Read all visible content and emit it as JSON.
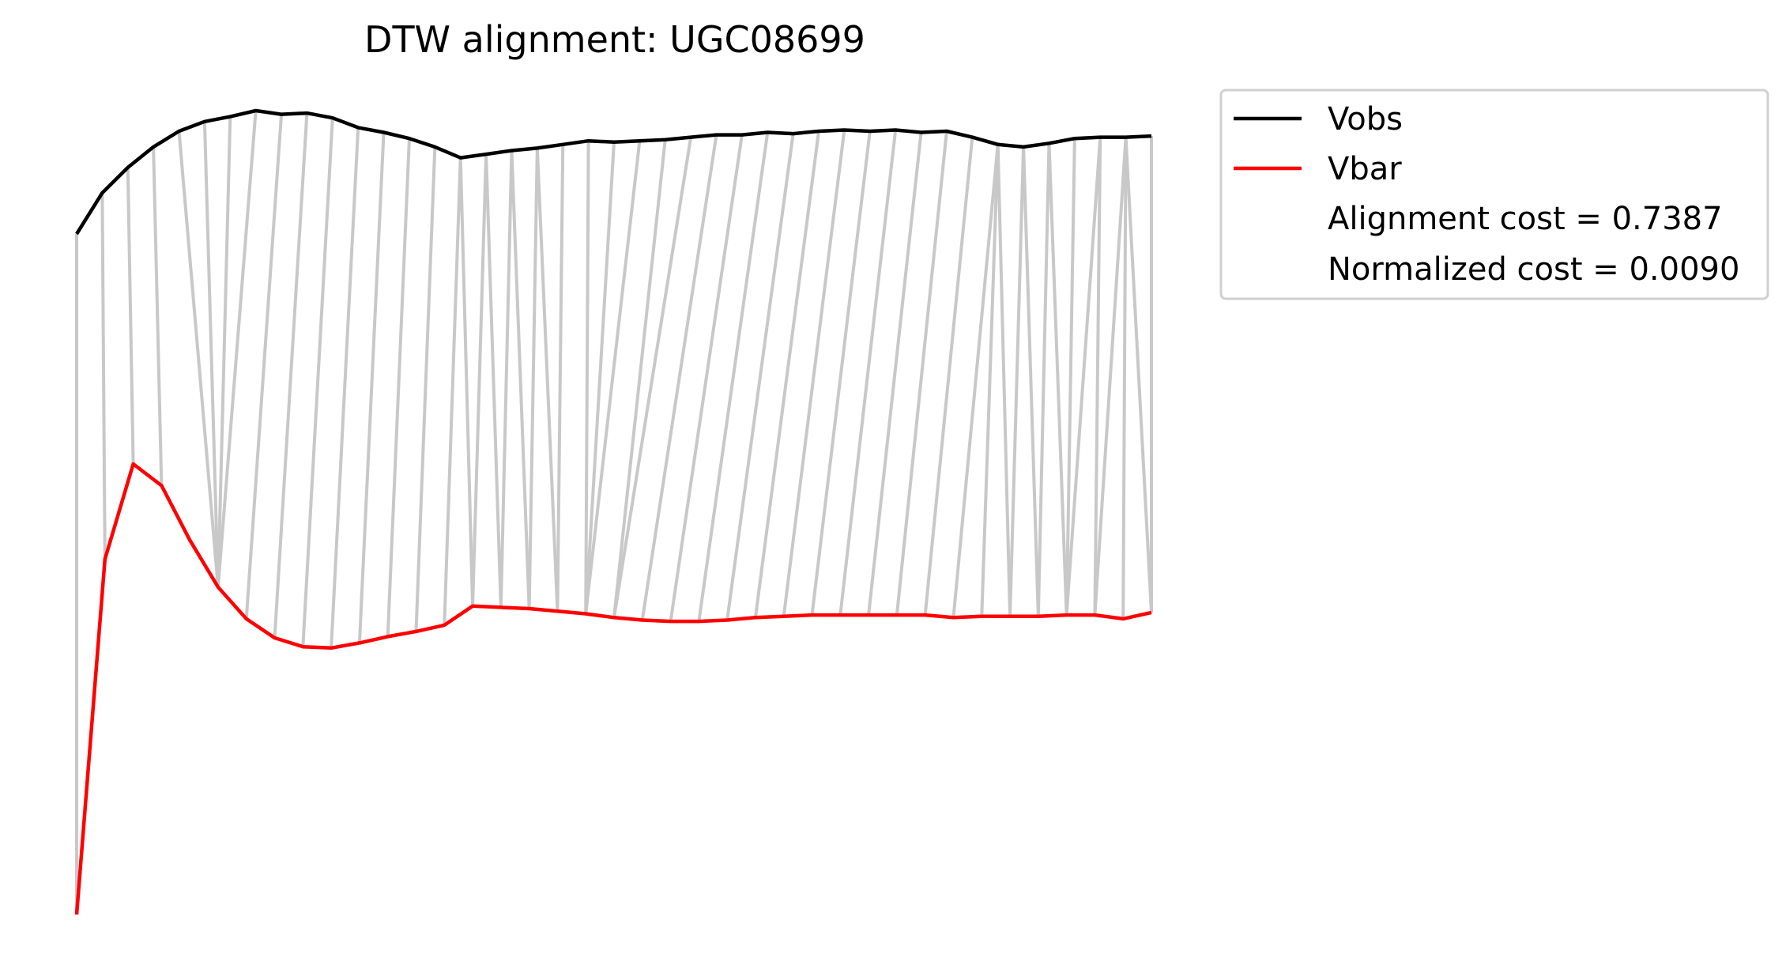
{
  "chart_data": {
    "type": "line",
    "title": "DTW alignment: UGC08699",
    "xlabel": "",
    "ylabel": "",
    "axes_visible": false,
    "grid": false,
    "legend_placement": "outside-upper-right",
    "series": [
      {
        "name": "Vobs",
        "color": "#000000",
        "values": [
          0.0,
          0.34,
          0.55,
          0.72,
          0.85,
          0.93,
          0.97,
          1.02,
          0.99,
          1.0,
          0.96,
          0.88,
          0.84,
          0.79,
          0.72,
          0.63,
          0.66,
          0.69,
          0.71,
          0.74,
          0.77,
          0.76,
          0.77,
          0.78,
          0.8,
          0.82,
          0.82,
          0.84,
          0.83,
          0.85,
          0.86,
          0.85,
          0.86,
          0.84,
          0.85,
          0.8,
          0.74,
          0.72,
          0.75,
          0.79,
          0.8,
          0.8,
          0.81
        ]
      },
      {
        "name": "Vbar",
        "color": "#ff0000",
        "values": [
          -5.3,
          -2.5,
          -1.75,
          -1.92,
          -2.35,
          -2.72,
          -2.97,
          -3.12,
          -3.19,
          -3.2,
          -3.16,
          -3.11,
          -3.07,
          -3.02,
          -2.87,
          -2.88,
          -2.89,
          -2.91,
          -2.93,
          -2.96,
          -2.98,
          -2.99,
          -2.99,
          -2.98,
          -2.96,
          -2.95,
          -2.94,
          -2.94,
          -2.94,
          -2.94,
          -2.94,
          -2.96,
          -2.95,
          -2.95,
          -2.95,
          -2.94,
          -2.94,
          -2.97,
          -2.92
        ]
      }
    ],
    "alignment_path": [
      [
        0,
        0
      ],
      [
        1,
        1
      ],
      [
        2,
        2
      ],
      [
        3,
        3
      ],
      [
        4,
        5
      ],
      [
        5,
        5
      ],
      [
        6,
        5
      ],
      [
        7,
        5
      ],
      [
        8,
        6
      ],
      [
        9,
        7
      ],
      [
        10,
        8
      ],
      [
        11,
        9
      ],
      [
        12,
        10
      ],
      [
        13,
        11
      ],
      [
        14,
        12
      ],
      [
        15,
        13
      ],
      [
        15,
        14
      ],
      [
        16,
        14
      ],
      [
        16,
        15
      ],
      [
        17,
        15
      ],
      [
        17,
        16
      ],
      [
        18,
        16
      ],
      [
        18,
        17
      ],
      [
        19,
        17
      ],
      [
        20,
        18
      ],
      [
        21,
        18
      ],
      [
        22,
        18
      ],
      [
        23,
        19
      ],
      [
        24,
        19
      ],
      [
        25,
        20
      ],
      [
        26,
        21
      ],
      [
        27,
        22
      ],
      [
        28,
        23
      ],
      [
        29,
        24
      ],
      [
        30,
        25
      ],
      [
        31,
        26
      ],
      [
        32,
        27
      ],
      [
        33,
        28
      ],
      [
        34,
        29
      ],
      [
        35,
        30
      ],
      [
        36,
        31
      ],
      [
        36,
        32
      ],
      [
        36,
        33
      ],
      [
        37,
        33
      ],
      [
        37,
        34
      ],
      [
        38,
        34
      ],
      [
        38,
        35
      ],
      [
        39,
        35
      ],
      [
        40,
        35
      ],
      [
        40,
        36
      ],
      [
        41,
        36
      ],
      [
        41,
        37
      ],
      [
        41,
        38
      ],
      [
        42,
        38
      ]
    ],
    "legend_entries": [
      {
        "label": "Vobs",
        "color": "#000000"
      },
      {
        "label": "Vbar",
        "color": "#ff0000"
      },
      {
        "label": "Alignment cost = 0.7387",
        "color": ""
      },
      {
        "label": "Normalized cost = 0.0090",
        "color": ""
      }
    ],
    "connector_color": "#c8c8c8"
  }
}
